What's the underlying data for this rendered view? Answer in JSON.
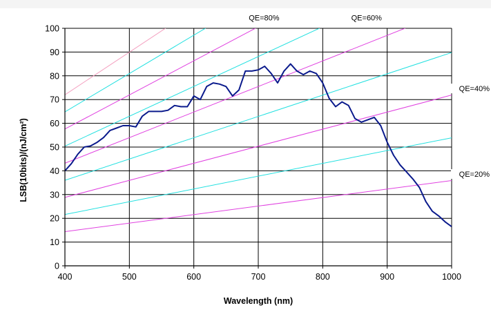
{
  "chart_data": {
    "type": "line",
    "title": "",
    "xlabel": "Wavelength (nm)",
    "ylabel": "LSB(10bits)/(nJ/cm²)",
    "xlim": [
      400,
      1000
    ],
    "ylim": [
      0,
      100
    ],
    "x_ticks": [
      "400",
      "500",
      "600",
      "700",
      "800",
      "900",
      "1000"
    ],
    "y_ticks": [
      "0",
      "10",
      "20",
      "30",
      "40",
      "50",
      "60",
      "70",
      "80",
      "90",
      "100"
    ],
    "grid": true,
    "colors": {
      "response": "#0a1a8c",
      "qe_magenta": "#e040e0",
      "qe_cyan": "#20e0e0",
      "qe_pink": "#f4a0c0",
      "grid": "#000000",
      "axis": "#000000"
    },
    "qe_lines": [
      {
        "color_key": "qe_magenta",
        "label": "QE=20%",
        "values": [
          14.4,
          35.9
        ]
      },
      {
        "color_key": "qe_cyan",
        "label": "",
        "values": [
          21.6,
          53.9
        ]
      },
      {
        "color_key": "qe_magenta",
        "label": "",
        "values": [
          28.8,
          71.9
        ]
      },
      {
        "color_key": "qe_cyan",
        "label": "",
        "values": [
          36.0,
          89.8
        ]
      },
      {
        "color_key": "qe_magenta",
        "label": "QE=40%",
        "values": [
          43.2,
          107.8
        ]
      },
      {
        "color_key": "qe_cyan",
        "label": "",
        "values": [
          50.4,
          125.8
        ]
      },
      {
        "color_key": "qe_magenta",
        "label": "QE=60%",
        "values": [
          57.6,
          143.7
        ]
      },
      {
        "color_key": "qe_cyan",
        "label": "",
        "values": [
          64.8,
          161.7
        ]
      },
      {
        "color_key": "qe_pink",
        "label": "QE=80%",
        "values": [
          72.0,
          179.7
        ]
      }
    ],
    "series": [
      {
        "name": "",
        "x": [
          400,
          410,
          420,
          430,
          440,
          450,
          460,
          470,
          480,
          490,
          500,
          510,
          520,
          530,
          540,
          550,
          560,
          570,
          580,
          590,
          600,
          610,
          620,
          630,
          640,
          650,
          660,
          670,
          680,
          690,
          700,
          710,
          720,
          730,
          740,
          750,
          760,
          770,
          780,
          790,
          800,
          810,
          820,
          830,
          840,
          850,
          860,
          870,
          880,
          890,
          900,
          910,
          920,
          930,
          940,
          950,
          960,
          970,
          980,
          990,
          1000
        ],
        "y": [
          40,
          43,
          47,
          50,
          50.5,
          52,
          54,
          57,
          58,
          59,
          59,
          58.5,
          63,
          65,
          65,
          65,
          65.5,
          67.5,
          67,
          67,
          71.5,
          70,
          75.5,
          77,
          76.5,
          75.5,
          71.5,
          74,
          82,
          82,
          82.5,
          84,
          81,
          77,
          82,
          85,
          82,
          80.5,
          82,
          81,
          77,
          70.5,
          67,
          69,
          67.5,
          62,
          60.5,
          61.5,
          62.5,
          59,
          52,
          46.5,
          42.5,
          39.5,
          36.5,
          33,
          27,
          23,
          21,
          18.5,
          16.5
        ]
      }
    ],
    "annotations": [
      {
        "text": "QE=80%",
        "x": 709,
        "y": 103.3
      },
      {
        "text": "QE=60%",
        "x": 868,
        "y": 103.3
      },
      {
        "text": "QE=40%",
        "x": 1030,
        "y": 73.5
      },
      {
        "text": "QE=20%",
        "x": 1030,
        "y": 37.5
      }
    ]
  }
}
